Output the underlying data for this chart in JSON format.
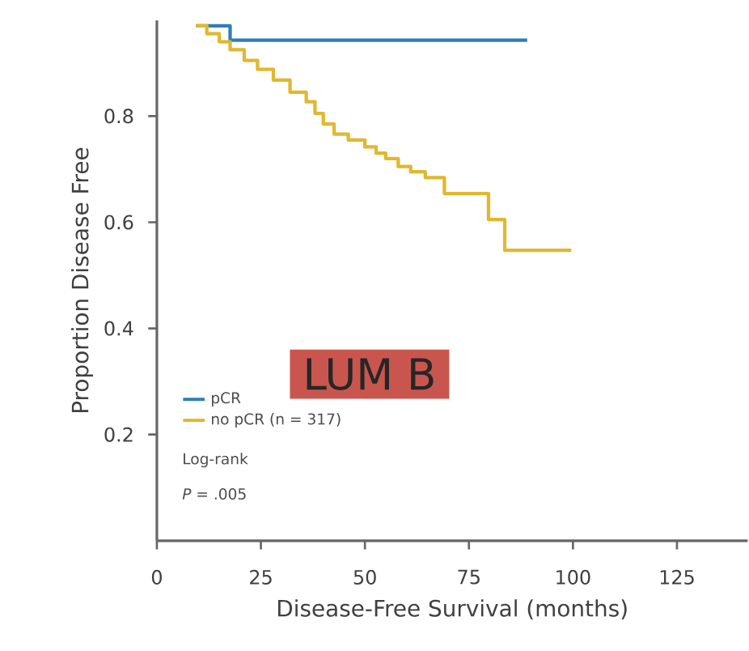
{
  "chart_data": {
    "type": "step",
    "xlabel": "Disease-Free Survival (months)",
    "ylabel": "Proportion Disease Free",
    "xlim": [
      0,
      142
    ],
    "ylim": [
      0,
      0.98
    ],
    "xticks": [
      0,
      25,
      50,
      75,
      100,
      125
    ],
    "yticks": [
      0.2,
      0.4,
      0.6,
      0.8
    ],
    "grid": false,
    "legend": "bottom left",
    "line_style": "solid",
    "series": [
      {
        "name": "pCR",
        "color": "#2e7fb8",
        "x": [
          9.4,
          17.6,
          89
        ],
        "values": [
          0.97,
          0.943,
          0.943
        ]
      },
      {
        "name": "no pCR (n = 317)",
        "color": "#e0b830",
        "x": [
          9.4,
          12,
          15,
          17.6,
          21,
          24.2,
          28,
          32,
          35.9,
          38,
          40,
          42.6,
          46,
          50,
          52.7,
          55,
          58,
          61,
          64.5,
          69.1,
          79.7,
          83.6,
          99.6
        ],
        "values": [
          0.97,
          0.955,
          0.94,
          0.925,
          0.905,
          0.888,
          0.868,
          0.845,
          0.827,
          0.805,
          0.785,
          0.766,
          0.755,
          0.742,
          0.73,
          0.72,
          0.705,
          0.695,
          0.684,
          0.654,
          0.605,
          0.547,
          0.547
        ]
      }
    ],
    "annotations": [
      "LUM B",
      "Log-rank",
      "*P* = .005"
    ]
  }
}
